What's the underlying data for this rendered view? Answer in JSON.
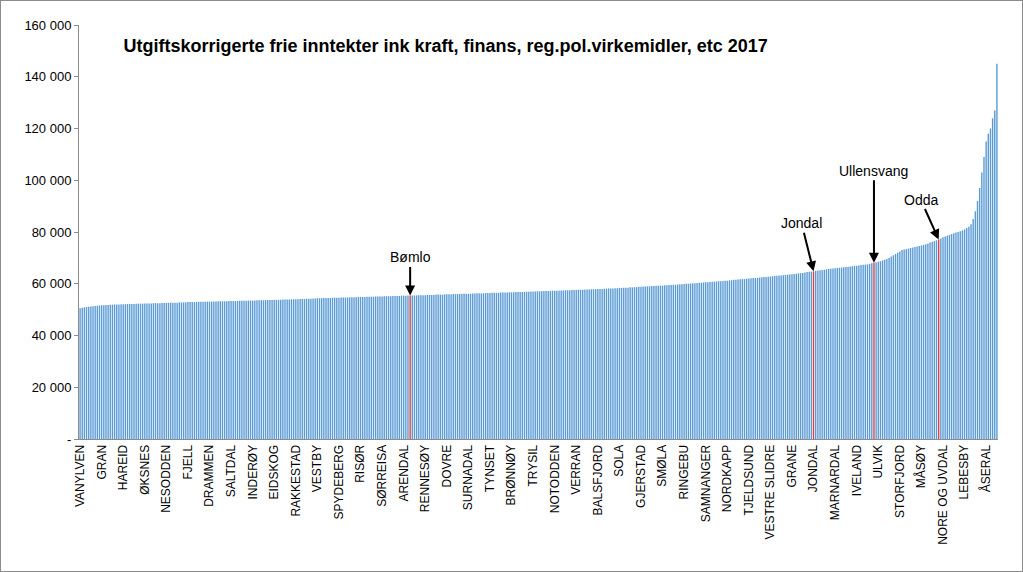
{
  "chart_data": {
    "type": "bar",
    "title": "Utgiftskorrigerte frie inntekter ink kraft, finans, reg.pol.virkemidler, etc 2017",
    "categories": [
      "VANYLVEN",
      null,
      null,
      null,
      null,
      null,
      null,
      null,
      null,
      null,
      "GRAN",
      null,
      null,
      null,
      null,
      null,
      null,
      null,
      null,
      null,
      "HAREID",
      null,
      null,
      null,
      null,
      null,
      null,
      null,
      null,
      null,
      "ØKSNES",
      null,
      null,
      null,
      null,
      null,
      null,
      null,
      null,
      null,
      "NESODDEN",
      null,
      null,
      null,
      null,
      null,
      null,
      null,
      null,
      null,
      "FJELL",
      null,
      null,
      null,
      null,
      null,
      null,
      null,
      null,
      null,
      "DRAMMEN",
      null,
      null,
      null,
      null,
      null,
      null,
      null,
      null,
      null,
      "SALTDAL",
      null,
      null,
      null,
      null,
      null,
      null,
      null,
      null,
      null,
      "INDERØY",
      null,
      null,
      null,
      null,
      null,
      null,
      null,
      null,
      null,
      "EIDSKOG",
      null,
      null,
      null,
      null,
      null,
      null,
      null,
      null,
      null,
      "RAKKESTAD",
      null,
      null,
      null,
      null,
      null,
      null,
      null,
      null,
      null,
      "VESTBY",
      null,
      null,
      null,
      null,
      null,
      null,
      null,
      null,
      null,
      "SPYDEBERG",
      null,
      null,
      null,
      null,
      null,
      null,
      null,
      null,
      null,
      "RISØR",
      null,
      null,
      null,
      null,
      null,
      null,
      null,
      null,
      null,
      "SØRREISA",
      null,
      null,
      null,
      null,
      null,
      null,
      null,
      null,
      null,
      "ARENDAL",
      null,
      null,
      null,
      null,
      null,
      null,
      null,
      null,
      null,
      "RENNESØY",
      null,
      null,
      null,
      null,
      null,
      null,
      null,
      null,
      null,
      "DOVRE",
      null,
      null,
      null,
      null,
      null,
      null,
      null,
      null,
      null,
      "SURNADAL",
      null,
      null,
      null,
      null,
      null,
      null,
      null,
      null,
      null,
      "TYNSET",
      null,
      null,
      null,
      null,
      null,
      null,
      null,
      null,
      null,
      "BRØNNØY",
      null,
      null,
      null,
      null,
      null,
      null,
      null,
      null,
      null,
      "TRYSIL",
      null,
      null,
      null,
      null,
      null,
      null,
      null,
      null,
      null,
      "NOTODDEN",
      null,
      null,
      null,
      null,
      null,
      null,
      null,
      null,
      null,
      "VERRAN",
      null,
      null,
      null,
      null,
      null,
      null,
      null,
      null,
      null,
      "BALSFJORD",
      null,
      null,
      null,
      null,
      null,
      null,
      null,
      null,
      null,
      "SOLA",
      null,
      null,
      null,
      null,
      null,
      null,
      null,
      null,
      null,
      "GJERSTAD",
      null,
      null,
      null,
      null,
      null,
      null,
      null,
      null,
      null,
      "SMØLA",
      null,
      null,
      null,
      null,
      null,
      null,
      null,
      null,
      null,
      "RINGEBU",
      null,
      null,
      null,
      null,
      null,
      null,
      null,
      null,
      null,
      "SAMNANGER",
      null,
      null,
      null,
      null,
      null,
      null,
      null,
      null,
      null,
      "NORDKAPP",
      null,
      null,
      null,
      null,
      null,
      null,
      null,
      null,
      null,
      "TJELDSUND",
      null,
      null,
      null,
      null,
      null,
      null,
      null,
      null,
      null,
      "VESTRE SLIDRE",
      null,
      null,
      null,
      null,
      null,
      null,
      null,
      null,
      null,
      "GRANE",
      null,
      null,
      null,
      null,
      null,
      null,
      null,
      null,
      null,
      "JONDAL",
      null,
      null,
      null,
      null,
      null,
      null,
      null,
      null,
      null,
      "MARNARDAL",
      null,
      null,
      null,
      null,
      null,
      null,
      null,
      null,
      null,
      "IVELAND",
      null,
      null,
      null,
      null,
      null,
      null,
      null,
      null,
      null,
      "ULVIK",
      null,
      null,
      null,
      null,
      null,
      null,
      null,
      null,
      null,
      "STORFJORD",
      null,
      null,
      null,
      null,
      null,
      null,
      null,
      null,
      null,
      "MÅSØY",
      null,
      null,
      null,
      null,
      null,
      null,
      null,
      null,
      null,
      "NORE OG UVDAL",
      null,
      null,
      null,
      null,
      null,
      null,
      null,
      null,
      null,
      "LEBESBY",
      null,
      null,
      null,
      null,
      null,
      null,
      null,
      null,
      null,
      "ÅSERAL",
      null,
      null,
      null,
      null,
      null
    ],
    "values": [
      50500,
      50700,
      50900,
      51000,
      51100,
      51200,
      51300,
      51400,
      51500,
      51600,
      51700,
      51700,
      51800,
      51800,
      51900,
      51900,
      52000,
      52000,
      52000,
      52100,
      52100,
      52100,
      52200,
      52200,
      52200,
      52200,
      52300,
      52300,
      52300,
      52300,
      52400,
      52400,
      52400,
      52400,
      52500,
      52500,
      52500,
      52500,
      52600,
      52600,
      52600,
      52600,
      52700,
      52700,
      52700,
      52700,
      52800,
      52800,
      52800,
      52800,
      52900,
      52900,
      52900,
      52900,
      53000,
      53000,
      53000,
      53000,
      53000,
      53100,
      53100,
      53100,
      53100,
      53100,
      53200,
      53200,
      53200,
      53200,
      53200,
      53300,
      53300,
      53300,
      53300,
      53400,
      53400,
      53400,
      53400,
      53400,
      53500,
      53500,
      53500,
      53500,
      53600,
      53600,
      53600,
      53600,
      53700,
      53700,
      53700,
      53700,
      53800,
      53800,
      53800,
      53800,
      53900,
      53900,
      53900,
      53900,
      54000,
      54000,
      54000,
      54000,
      54100,
      54100,
      54100,
      54200,
      54200,
      54200,
      54300,
      54300,
      54400,
      54400,
      54400,
      54500,
      54500,
      54500,
      54500,
      54600,
      54600,
      54600,
      54600,
      54700,
      54700,
      54700,
      54700,
      54800,
      54800,
      54800,
      54800,
      54900,
      54900,
      54900,
      54900,
      55000,
      55000,
      55000,
      55000,
      55100,
      55100,
      55100,
      55100,
      55200,
      55200,
      55200,
      55200,
      55300,
      55300,
      55300,
      55300,
      55400,
      55400,
      55400,
      55500,
      55500,
      55500,
      55500,
      55500,
      55600,
      55600,
      55600,
      55600,
      55700,
      55700,
      55700,
      55700,
      55800,
      55800,
      55800,
      55800,
      55900,
      55900,
      55900,
      55900,
      56000,
      56000,
      56000,
      56000,
      56100,
      56100,
      56100,
      56100,
      56200,
      56200,
      56200,
      56300,
      56300,
      56300,
      56300,
      56400,
      56400,
      56400,
      56500,
      56500,
      56500,
      56500,
      56600,
      56600,
      56600,
      56600,
      56700,
      56700,
      56700,
      56800,
      56800,
      56800,
      56800,
      56900,
      56900,
      56900,
      57000,
      57000,
      57000,
      57100,
      57100,
      57100,
      57200,
      57200,
      57200,
      57200,
      57300,
      57300,
      57300,
      57400,
      57400,
      57400,
      57500,
      57500,
      57500,
      57600,
      57600,
      57600,
      57700,
      57700,
      57700,
      57800,
      57800,
      57800,
      57900,
      57900,
      57900,
      58000,
      58000,
      58000,
      58100,
      58100,
      58200,
      58200,
      58200,
      58300,
      58300,
      58400,
      58400,
      58500,
      58500,
      58500,
      58600,
      58600,
      58700,
      58700,
      58800,
      58800,
      58900,
      58900,
      59000,
      59000,
      59100,
      59100,
      59200,
      59200,
      59300,
      59300,
      59400,
      59400,
      59500,
      59500,
      59600,
      59600,
      59700,
      59800,
      59800,
      59900,
      60000,
      60000,
      60100,
      60200,
      60200,
      60300,
      60400,
      60400,
      60500,
      60600,
      60600,
      60700,
      60800,
      60800,
      60900,
      61000,
      61000,
      61100,
      61200,
      61200,
      61300,
      61400,
      61500,
      61500,
      61600,
      61700,
      61800,
      61800,
      61900,
      62000,
      62100,
      62200,
      62200,
      62300,
      62400,
      62500,
      62600,
      62600,
      62700,
      62800,
      62900,
      63000,
      63100,
      63200,
      63200,
      63300,
      63400,
      63500,
      63600,
      63700,
      63800,
      63900,
      64000,
      64100,
      64200,
      64300,
      64500,
      64600,
      64700,
      64800,
      65000,
      65100,
      65200,
      65300,
      65400,
      65600,
      65700,
      65800,
      65900,
      66000,
      66100,
      66200,
      66300,
      66400,
      66500,
      66600,
      66700,
      66800,
      66900,
      67000,
      67100,
      67200,
      67300,
      67400,
      67500,
      67700,
      67900,
      68100,
      68300,
      68500,
      68700,
      69000,
      69300,
      69600,
      70000,
      70500,
      71000,
      71500,
      72000,
      72500,
      73000,
      73200,
      73400,
      73600,
      73800,
      74000,
      74200,
      74400,
      74600,
      74800,
      75000,
      75300,
      75600,
      75900,
      76200,
      76500,
      76800,
      77100,
      77500,
      78000,
      78300,
      78600,
      78900,
      79200,
      79500,
      79800,
      80000,
      80300,
      80600,
      81000,
      81500,
      82000,
      83000,
      85000,
      88000,
      92000,
      97000,
      103000,
      109000,
      115000,
      118000,
      120000,
      124000,
      127000,
      145000
    ],
    "colors": [
      "#5b9bd5",
      "#5b9bd5",
      "#5b9bd5",
      "#5b9bd5",
      "#5b9bd5",
      "#5b9bd5",
      "#5b9bd5",
      "#5b9bd5",
      "#5b9bd5",
      "#5b9bd5",
      "#5b9bd5",
      "#5b9bd5",
      "#5b9bd5",
      "#5b9bd5",
      "#5b9bd5",
      "#5b9bd5",
      "#5b9bd5",
      "#5b9bd5",
      "#5b9bd5",
      "#5b9bd5",
      "#5b9bd5",
      "#5b9bd5",
      "#5b9bd5",
      "#5b9bd5",
      "#5b9bd5",
      "#5b9bd5",
      "#5b9bd5",
      "#5b9bd5",
      "#5b9bd5",
      "#5b9bd5",
      "#5b9bd5",
      "#5b9bd5",
      "#5b9bd5",
      "#5b9bd5",
      "#5b9bd5",
      "#5b9bd5",
      "#5b9bd5",
      "#5b9bd5",
      "#5b9bd5",
      "#5b9bd5",
      "#5b9bd5",
      "#5b9bd5",
      "#5b9bd5",
      "#5b9bd5",
      "#5b9bd5",
      "#5b9bd5",
      "#5b9bd5",
      "#5b9bd5",
      "#5b9bd5",
      "#5b9bd5",
      "#5b9bd5",
      "#5b9bd5",
      "#5b9bd5",
      "#5b9bd5",
      "#5b9bd5",
      "#5b9bd5",
      "#5b9bd5",
      "#5b9bd5",
      "#5b9bd5",
      "#5b9bd5",
      "#5b9bd5",
      "#5b9bd5",
      "#5b9bd5",
      "#5b9bd5",
      "#5b9bd5",
      "#5b9bd5",
      "#5b9bd5",
      "#5b9bd5",
      "#5b9bd5",
      "#5b9bd5",
      "#5b9bd5",
      "#5b9bd5",
      "#5b9bd5",
      "#5b9bd5",
      "#5b9bd5",
      "#5b9bd5",
      "#5b9bd5",
      "#5b9bd5",
      "#5b9bd5",
      "#5b9bd5",
      "#5b9bd5",
      "#5b9bd5",
      "#5b9bd5",
      "#5b9bd5",
      "#5b9bd5",
      "#5b9bd5",
      "#5b9bd5",
      "#5b9bd5",
      "#5b9bd5",
      "#5b9bd5",
      "#5b9bd5",
      "#5b9bd5",
      "#5b9bd5",
      "#5b9bd5",
      "#5b9bd5",
      "#5b9bd5",
      "#5b9bd5",
      "#5b9bd5",
      "#5b9bd5",
      "#5b9bd5",
      "#5b9bd5",
      "#5b9bd5",
      "#5b9bd5",
      "#5b9bd5",
      "#5b9bd5",
      "#5b9bd5",
      "#5b9bd5",
      "#5b9bd5",
      "#5b9bd5",
      "#5b9bd5",
      "#5b9bd5",
      "#5b9bd5",
      "#5b9bd5",
      "#5b9bd5",
      "#5b9bd5",
      "#5b9bd5",
      "#5b9bd5",
      "#5b9bd5",
      "#5b9bd5",
      "#5b9bd5",
      "#5b9bd5",
      "#5b9bd5",
      "#5b9bd5",
      "#5b9bd5",
      "#5b9bd5",
      "#5b9bd5",
      "#5b9bd5",
      "#5b9bd5",
      "#5b9bd5",
      "#5b9bd5",
      "#5b9bd5",
      "#5b9bd5",
      "#5b9bd5",
      "#5b9bd5",
      "#5b9bd5",
      "#5b9bd5",
      "#5b9bd5",
      "#5b9bd5",
      "#5b9bd5",
      "#5b9bd5",
      "#5b9bd5",
      "#5b9bd5",
      "#5b9bd5",
      "#5b9bd5",
      "#5b9bd5",
      "#5b9bd5",
      "#5b9bd5",
      "#5b9bd5",
      "#5b9bd5",
      "#5b9bd5",
      "#5b9bd5",
      "#5b9bd5",
      "#5b9bd5",
      "#e04040",
      "#5b9bd5",
      "#5b9bd5",
      "#5b9bd5",
      "#5b9bd5",
      "#5b9bd5",
      "#5b9bd5",
      "#5b9bd5",
      "#5b9bd5",
      "#5b9bd5",
      "#5b9bd5",
      "#5b9bd5",
      "#5b9bd5",
      "#5b9bd5",
      "#5b9bd5",
      "#5b9bd5",
      "#5b9bd5",
      "#5b9bd5",
      "#5b9bd5",
      "#5b9bd5",
      "#5b9bd5",
      "#5b9bd5",
      "#5b9bd5",
      "#5b9bd5",
      "#5b9bd5",
      "#5b9bd5",
      "#5b9bd5",
      "#5b9bd5",
      "#5b9bd5",
      "#5b9bd5",
      "#5b9bd5",
      "#5b9bd5",
      "#5b9bd5",
      "#5b9bd5",
      "#5b9bd5",
      "#5b9bd5",
      "#5b9bd5",
      "#5b9bd5",
      "#5b9bd5",
      "#5b9bd5",
      "#5b9bd5",
      "#5b9bd5",
      "#5b9bd5",
      "#5b9bd5",
      "#5b9bd5",
      "#5b9bd5",
      "#5b9bd5",
      "#5b9bd5",
      "#5b9bd5",
      "#5b9bd5",
      "#5b9bd5",
      "#5b9bd5",
      "#5b9bd5",
      "#5b9bd5",
      "#5b9bd5",
      "#5b9bd5",
      "#5b9bd5",
      "#5b9bd5",
      "#5b9bd5",
      "#5b9bd5",
      "#5b9bd5",
      "#5b9bd5",
      "#5b9bd5",
      "#5b9bd5",
      "#5b9bd5",
      "#5b9bd5",
      "#5b9bd5",
      "#5b9bd5",
      "#5b9bd5",
      "#5b9bd5",
      "#5b9bd5",
      "#5b9bd5",
      "#5b9bd5",
      "#5b9bd5",
      "#5b9bd5",
      "#5b9bd5",
      "#5b9bd5",
      "#5b9bd5",
      "#5b9bd5",
      "#5b9bd5",
      "#5b9bd5",
      "#5b9bd5",
      "#5b9bd5",
      "#5b9bd5",
      "#5b9bd5",
      "#5b9bd5",
      "#5b9bd5",
      "#5b9bd5",
      "#5b9bd5",
      "#5b9bd5",
      "#5b9bd5",
      "#5b9bd5",
      "#5b9bd5",
      "#5b9bd5",
      "#5b9bd5",
      "#5b9bd5",
      "#5b9bd5",
      "#5b9bd5",
      "#5b9bd5",
      "#5b9bd5",
      "#5b9bd5",
      "#5b9bd5",
      "#5b9bd5",
      "#5b9bd5",
      "#5b9bd5",
      "#5b9bd5",
      "#5b9bd5",
      "#5b9bd5",
      "#5b9bd5",
      "#5b9bd5",
      "#5b9bd5",
      "#5b9bd5",
      "#5b9bd5",
      "#5b9bd5",
      "#5b9bd5",
      "#5b9bd5",
      "#5b9bd5",
      "#5b9bd5",
      "#5b9bd5",
      "#5b9bd5",
      "#5b9bd5",
      "#5b9bd5",
      "#5b9bd5",
      "#5b9bd5",
      "#5b9bd5",
      "#5b9bd5",
      "#5b9bd5",
      "#5b9bd5",
      "#5b9bd5",
      "#5b9bd5",
      "#5b9bd5",
      "#5b9bd5",
      "#5b9bd5",
      "#5b9bd5",
      "#5b9bd5",
      "#5b9bd5",
      "#5b9bd5",
      "#5b9bd5",
      "#5b9bd5",
      "#5b9bd5",
      "#5b9bd5",
      "#5b9bd5",
      "#5b9bd5",
      "#5b9bd5",
      "#5b9bd5",
      "#5b9bd5",
      "#5b9bd5",
      "#5b9bd5",
      "#5b9bd5",
      "#5b9bd5",
      "#5b9bd5",
      "#5b9bd5",
      "#5b9bd5",
      "#5b9bd5",
      "#5b9bd5",
      "#5b9bd5",
      "#5b9bd5",
      "#5b9bd5",
      "#5b9bd5",
      "#5b9bd5",
      "#5b9bd5",
      "#5b9bd5",
      "#5b9bd5",
      "#5b9bd5",
      "#5b9bd5",
      "#5b9bd5",
      "#5b9bd5",
      "#5b9bd5",
      "#5b9bd5",
      "#5b9bd5",
      "#5b9bd5",
      "#5b9bd5",
      "#5b9bd5",
      "#5b9bd5",
      "#5b9bd5",
      "#5b9bd5",
      "#5b9bd5",
      "#5b9bd5",
      "#5b9bd5",
      "#5b9bd5",
      "#5b9bd5",
      "#5b9bd5",
      "#5b9bd5",
      "#5b9bd5",
      "#5b9bd5",
      "#5b9bd5",
      "#5b9bd5",
      "#e04040",
      "#5b9bd5",
      "#5b9bd5",
      "#5b9bd5",
      "#5b9bd5",
      "#5b9bd5",
      "#5b9bd5",
      "#5b9bd5",
      "#5b9bd5",
      "#5b9bd5",
      "#5b9bd5",
      "#5b9bd5",
      "#5b9bd5",
      "#5b9bd5",
      "#5b9bd5",
      "#5b9bd5",
      "#5b9bd5",
      "#5b9bd5",
      "#5b9bd5",
      "#5b9bd5",
      "#5b9bd5",
      "#5b9bd5",
      "#5b9bd5",
      "#5b9bd5",
      "#5b9bd5",
      "#5b9bd5",
      "#5b9bd5",
      "#5b9bd5",
      "#e04040",
      "#5b9bd5",
      "#5b9bd5",
      "#5b9bd5",
      "#5b9bd5",
      "#5b9bd5",
      "#5b9bd5",
      "#5b9bd5",
      "#5b9bd5",
      "#5b9bd5",
      "#5b9bd5",
      "#5b9bd5",
      "#5b9bd5",
      "#5b9bd5",
      "#5b9bd5",
      "#5b9bd5",
      "#5b9bd5",
      "#5b9bd5",
      "#5b9bd5",
      "#5b9bd5",
      "#5b9bd5",
      "#5b9bd5",
      "#5b9bd5",
      "#5b9bd5",
      "#5b9bd5",
      "#5b9bd5",
      "#5b9bd5",
      "#5b9bd5",
      "#5b9bd5",
      "#5b9bd5",
      "#e04040",
      "#5b9bd5",
      "#5b9bd5",
      "#5b9bd5",
      "#5b9bd5",
      "#5b9bd5",
      "#5b9bd5",
      "#5b9bd5",
      "#5b9bd5",
      "#5b9bd5",
      "#5b9bd5",
      "#5b9bd5",
      "#5b9bd5",
      "#5b9bd5",
      "#5b9bd5",
      "#5b9bd5",
      "#5b9bd5",
      "#5b9bd5",
      "#5b9bd5",
      "#5b9bd5",
      "#5b9bd5",
      "#5b9bd5",
      "#5b9bd5",
      "#5b9bd5",
      "#5b9bd5",
      "#5b9bd5",
      "#5b9bd5",
      "#5b9bd5"
    ],
    "ylim": [
      0,
      160000
    ],
    "yticks": [
      {
        "value": 0,
        "label": "-"
      },
      {
        "value": 20000,
        "label": "20 000"
      },
      {
        "value": 40000,
        "label": "40 000"
      },
      {
        "value": 60000,
        "label": "60 000"
      },
      {
        "value": 80000,
        "label": "80 000"
      },
      {
        "value": 100000,
        "label": "100 000"
      },
      {
        "value": 120000,
        "label": "120 000"
      },
      {
        "value": 140000,
        "label": "140 000"
      },
      {
        "value": 160000,
        "label": "160 000"
      }
    ],
    "grid": false,
    "annotations": [
      {
        "text": "Bømlo",
        "x": 153
      },
      {
        "text": "Jondal",
        "x": 340
      },
      {
        "text": "Ullensvang",
        "x": 368
      },
      {
        "text": "Odda",
        "x": 398
      }
    ]
  }
}
